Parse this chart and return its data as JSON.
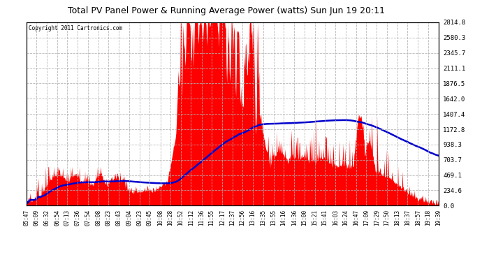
{
  "title": "Total PV Panel Power & Running Average Power (watts) Sun Jun 19 20:11",
  "copyright": "Copyright 2011 Cartronics.com",
  "background_color": "#ffffff",
  "plot_bg_color": "#ffffff",
  "grid_color": "#b0b0b0",
  "fill_color": "#ff0000",
  "line_color": "#0000cc",
  "y_ticks": [
    0.0,
    234.6,
    469.1,
    703.7,
    938.3,
    1172.8,
    1407.4,
    1642.0,
    1876.5,
    2111.1,
    2345.7,
    2580.3,
    2814.8
  ],
  "x_labels": [
    "05:47",
    "06:09",
    "06:32",
    "06:54",
    "07:13",
    "07:36",
    "07:54",
    "08:08",
    "08:23",
    "08:43",
    "09:04",
    "09:23",
    "09:45",
    "10:08",
    "10:28",
    "10:52",
    "11:12",
    "11:36",
    "11:55",
    "12:17",
    "12:37",
    "12:56",
    "13:16",
    "13:35",
    "13:55",
    "14:16",
    "14:36",
    "15:00",
    "15:21",
    "15:41",
    "16:03",
    "16:24",
    "16:47",
    "17:09",
    "17:29",
    "17:50",
    "18:13",
    "18:37",
    "18:57",
    "19:18",
    "19:39"
  ],
  "y_max": 2814.8,
  "y_min": 0.0
}
